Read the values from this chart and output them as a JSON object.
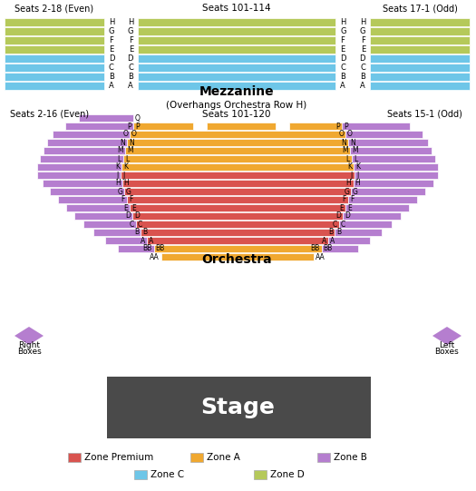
{
  "zone_premium_color": "#d9534f",
  "zone_a_color": "#f0a830",
  "zone_b_color": "#b57ecf",
  "zone_c_color": "#6ec6e8",
  "zone_d_color": "#b5c95a",
  "stage_color": "#4a4a4a",
  "stage_text_color": "#ffffff",
  "background_color": "#ffffff",
  "legend": [
    {
      "label": "Zone Premium",
      "color": "#d9534f"
    },
    {
      "label": "Zone A",
      "color": "#f0a830"
    },
    {
      "label": "Zone B",
      "color": "#b57ecf"
    },
    {
      "label": "Zone C",
      "color": "#6ec6e8"
    },
    {
      "label": "Zone D",
      "color": "#b5c95a"
    }
  ]
}
